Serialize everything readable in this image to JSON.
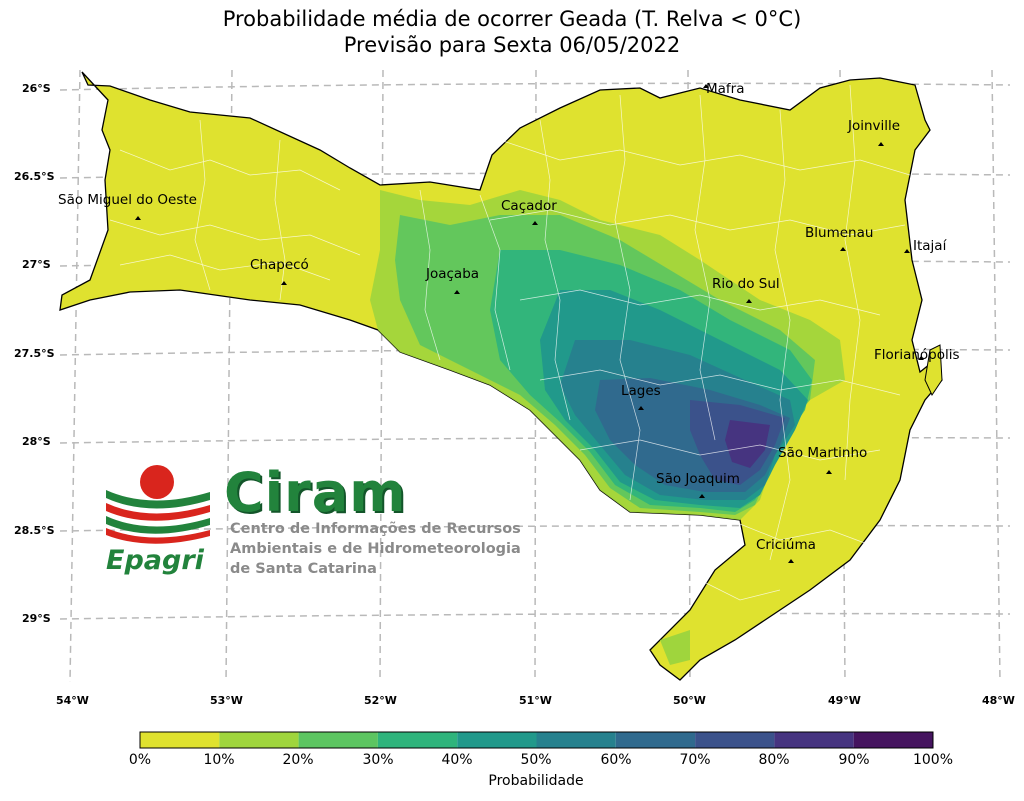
{
  "title_line1": "Probabilidade média de ocorrer Geada (T. Relva < 0°C)",
  "title_line2": "Previsão para Sexta 06/05/2022",
  "lat_labels": [
    "26°S",
    "26.5°S",
    "27°S",
    "27.5°S",
    "28°S",
    "28.5°S",
    "29°S"
  ],
  "lon_labels": [
    "54°W",
    "53°W",
    "52°W",
    "51°W",
    "50°W",
    "49°W",
    "48°W"
  ],
  "cities": [
    "Mafra",
    "Joinville",
    "São Miguel do Oeste",
    "Caçador",
    "Blumenau",
    "Itajaí",
    "Chapecó",
    "Joaçaba",
    "Rio do Sul",
    "Florianópolis",
    "Lages",
    "São Martinho",
    "São Joaquim",
    "Criciúma"
  ],
  "colorbar": {
    "label": "Probabilidade",
    "ticks": [
      "0%",
      "10%",
      "20%",
      "30%",
      "40%",
      "50%",
      "60%",
      "70%",
      "80%",
      "90%",
      "100%"
    ],
    "colors": [
      "#dfe22f",
      "#9fd53d",
      "#5cc561",
      "#2fb47c",
      "#21998b",
      "#26818e",
      "#306a8e",
      "#3b528b",
      "#463480",
      "#45145f"
    ]
  },
  "logo": {
    "name": "Ciram",
    "subtitle_lines": [
      "Centro de Informações de Recursos",
      "Ambientais e de Hidrometeorologia",
      "de Santa Catarina"
    ],
    "brand": "Epagri"
  }
}
